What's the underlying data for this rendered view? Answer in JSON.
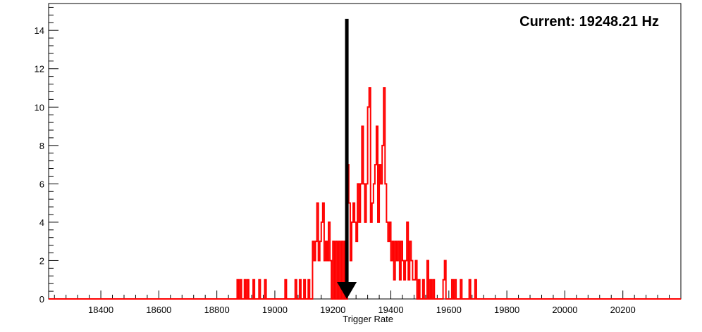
{
  "chart_data": {
    "type": "histogram",
    "xlabel": "Trigger Rate",
    "ylabel": "",
    "xlim": [
      18220,
      20400
    ],
    "ylim": [
      0,
      15.4
    ],
    "x_ticks": [
      18400,
      18600,
      18800,
      19000,
      19200,
      19400,
      19600,
      19800,
      20000,
      20200
    ],
    "y_ticks": [
      0,
      2,
      4,
      6,
      8,
      10,
      12,
      14
    ],
    "grid": false,
    "legend": "none",
    "line_color": "#ff0000",
    "bin_width": 5,
    "bins": [
      [
        18870,
        1
      ],
      [
        18880,
        1
      ],
      [
        18895,
        1
      ],
      [
        18905,
        1
      ],
      [
        18925,
        1
      ],
      [
        18945,
        1
      ],
      [
        18965,
        1
      ],
      [
        19035,
        1
      ],
      [
        19070,
        1
      ],
      [
        19085,
        1
      ],
      [
        19100,
        1
      ],
      [
        19115,
        1
      ],
      [
        19130,
        3
      ],
      [
        19135,
        2
      ],
      [
        19140,
        3
      ],
      [
        19145,
        5
      ],
      [
        19150,
        2
      ],
      [
        19155,
        3
      ],
      [
        19160,
        4
      ],
      [
        19165,
        5
      ],
      [
        19170,
        2
      ],
      [
        19175,
        3
      ],
      [
        19180,
        2
      ],
      [
        19185,
        4
      ],
      [
        19190,
        2
      ],
      [
        19200,
        3
      ],
      [
        19210,
        3
      ],
      [
        19220,
        3
      ],
      [
        19230,
        3
      ],
      [
        19240,
        3
      ],
      [
        19250,
        7
      ],
      [
        19255,
        5
      ],
      [
        19260,
        2
      ],
      [
        19265,
        4
      ],
      [
        19270,
        5
      ],
      [
        19275,
        4
      ],
      [
        19280,
        3
      ],
      [
        19285,
        6
      ],
      [
        19290,
        4
      ],
      [
        19295,
        6
      ],
      [
        19300,
        9
      ],
      [
        19305,
        6
      ],
      [
        19310,
        4
      ],
      [
        19315,
        6
      ],
      [
        19320,
        10
      ],
      [
        19325,
        11
      ],
      [
        19330,
        4
      ],
      [
        19335,
        5
      ],
      [
        19340,
        6
      ],
      [
        19345,
        7
      ],
      [
        19350,
        9
      ],
      [
        19355,
        4
      ],
      [
        19360,
        7
      ],
      [
        19365,
        6
      ],
      [
        19370,
        8
      ],
      [
        19375,
        11
      ],
      [
        19380,
        6
      ],
      [
        19385,
        4
      ],
      [
        19390,
        3
      ],
      [
        19395,
        4
      ],
      [
        19400,
        2
      ],
      [
        19405,
        3
      ],
      [
        19410,
        1
      ],
      [
        19415,
        3
      ],
      [
        19420,
        2
      ],
      [
        19425,
        3
      ],
      [
        19430,
        1
      ],
      [
        19435,
        3
      ],
      [
        19440,
        2
      ],
      [
        19445,
        1
      ],
      [
        19450,
        2
      ],
      [
        19455,
        4
      ],
      [
        19460,
        1
      ],
      [
        19465,
        3
      ],
      [
        19470,
        2
      ],
      [
        19475,
        1
      ],
      [
        19480,
        1
      ],
      [
        19485,
        2
      ],
      [
        19495,
        1
      ],
      [
        19510,
        1
      ],
      [
        19525,
        2
      ],
      [
        19535,
        1
      ],
      [
        19545,
        1
      ],
      [
        19580,
        1
      ],
      [
        19585,
        2
      ],
      [
        19610,
        1
      ],
      [
        19620,
        1
      ],
      [
        19640,
        1
      ],
      [
        19670,
        1
      ],
      [
        19690,
        1
      ]
    ],
    "arrow": {
      "x": 19248.21,
      "y_top": 14.6,
      "y_bottom": 0
    },
    "annotation": "Current: 19248.21 Hz"
  }
}
